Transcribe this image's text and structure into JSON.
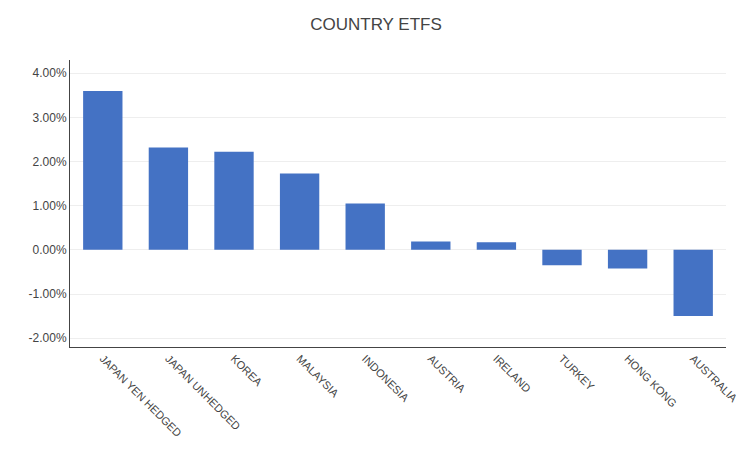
{
  "chart_data": {
    "type": "bar",
    "title": "COUNTRY ETFS",
    "categories": [
      "JAPAN YEN HEDGED",
      "JAPAN UNHEDGED",
      "KOREA",
      "MALAYSIA",
      "INDONESIA",
      "AUSTRIA",
      "IRELAND",
      "TURKEY",
      "HONG KONG",
      "AUSTRALIA"
    ],
    "values": [
      0.036,
      0.0232,
      0.0222,
      0.0173,
      0.0105,
      0.0019,
      0.0017,
      -0.0035,
      -0.0042,
      -0.015
    ],
    "color": "#4472C4",
    "ylim": [
      -0.022,
      0.043
    ],
    "yticks": [
      {
        "value": -0.02,
        "label": "-2.00%"
      },
      {
        "value": -0.01,
        "label": "-1.00%"
      },
      {
        "value": 0.0,
        "label": "0.00%"
      },
      {
        "value": 0.01,
        "label": "1.00%"
      },
      {
        "value": 0.02,
        "label": "2.00%"
      },
      {
        "value": 0.03,
        "label": "3.00%"
      },
      {
        "value": 0.04,
        "label": "4.00%"
      }
    ],
    "grid": true
  }
}
